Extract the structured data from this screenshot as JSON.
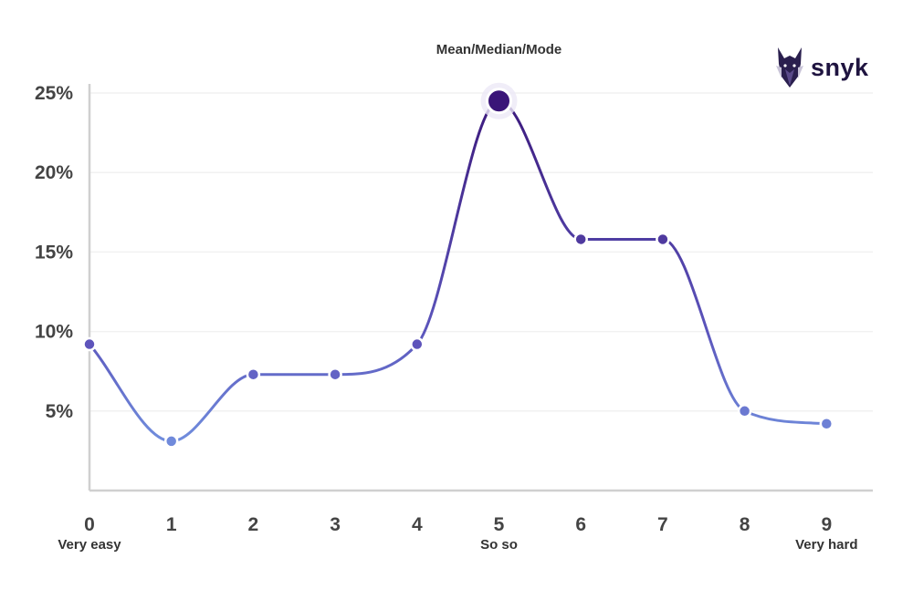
{
  "brand": {
    "name": "snyk",
    "icon": "doberman-logo-icon"
  },
  "chart_data": {
    "type": "line",
    "title": "",
    "annotation": "Mean/Median/Mode",
    "x": [
      0,
      1,
      2,
      3,
      4,
      5,
      6,
      7,
      8,
      9
    ],
    "x_tick_labels": [
      "0",
      "1",
      "2",
      "3",
      "4",
      "5",
      "6",
      "7",
      "8",
      "9"
    ],
    "x_sub_labels": [
      {
        "x": 0,
        "label": "Very easy"
      },
      {
        "x": 5,
        "label": "So so"
      },
      {
        "x": 9,
        "label": "Very hard"
      }
    ],
    "series": [
      {
        "values": [
          9.2,
          3.1,
          7.3,
          7.3,
          9.2,
          24.5,
          15.8,
          15.8,
          5.0,
          4.2
        ]
      }
    ],
    "highlight_index": 5,
    "ylim": [
      0,
      25
    ],
    "y_ticks": [
      5,
      10,
      15,
      20,
      25
    ],
    "y_tick_labels": [
      "5%",
      "10%",
      "15%",
      "20%",
      "25%"
    ],
    "xlabel": "",
    "ylabel": "",
    "grid": true,
    "colors": {
      "low": "#7aa7ec",
      "mid": "#5f56bd",
      "high": "#3a1578",
      "axis": "#d0d0d0",
      "grid": "#f1f1f1"
    }
  }
}
